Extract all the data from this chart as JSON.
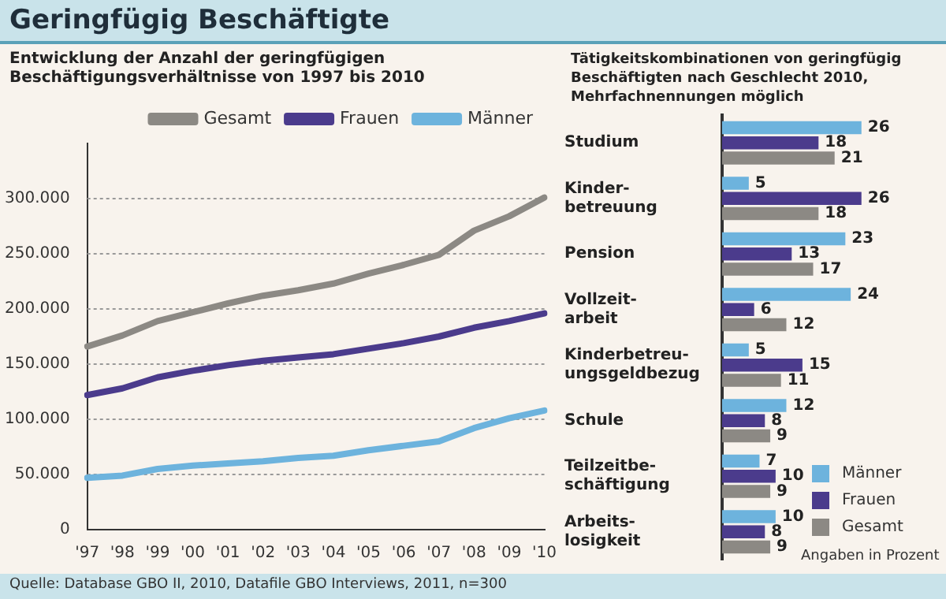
{
  "chart_data": [
    {
      "type": "line",
      "title": "Geringfügig Beschäftigte",
      "subtitle": "Entwicklung der Anzahl der geringfügigen Beschäftigungsverhältnisse von 1997 bis 2010",
      "categories": [
        "'97",
        "'98",
        "'99",
        "'00",
        "'01",
        "'02",
        "'03",
        "'04",
        "'05",
        "'06",
        "'07",
        "'08",
        "'09",
        "'10"
      ],
      "series": [
        {
          "name": "Gesamt",
          "color": "#8c8984",
          "values": [
            166000,
            176000,
            189000,
            197000,
            205000,
            212000,
            217000,
            223000,
            232000,
            240000,
            249000,
            271000,
            284000,
            301000
          ]
        },
        {
          "name": "Frauen",
          "color": "#4b3b8c",
          "values": [
            122000,
            128000,
            138000,
            144000,
            149000,
            153000,
            156000,
            159000,
            164000,
            169000,
            175000,
            183000,
            189000,
            196000
          ]
        },
        {
          "name": "Männer",
          "color": "#6db3dd",
          "values": [
            47000,
            49000,
            55000,
            58000,
            60000,
            62000,
            65000,
            67000,
            72000,
            76000,
            80000,
            92000,
            101000,
            108000
          ]
        }
      ],
      "ylim": [
        0,
        350000
      ],
      "yticks": [
        0,
        {
          "value": 50000,
          "label": "50.000"
        },
        {
          "value": 100000,
          "label": "100.000"
        },
        {
          "value": 150000,
          "label": "150.000"
        },
        {
          "value": 200000,
          "label": "200.000"
        },
        {
          "value": 250000,
          "label": "250.000"
        },
        {
          "value": 300000,
          "label": "300.000"
        }
      ],
      "grid": "y",
      "legend": "top",
      "marker": "none",
      "annotations": [
        "Quelle: Database GBO II, 2010, Datafile GBO Interviews, 2011, n=300"
      ]
    },
    {
      "type": "bar",
      "orientation": "horizontal",
      "title": "Tätigkeitskombinationen von geringfügig Beschäftigten nach Geschlecht 2010, Mehrfachnennungen möglich",
      "categories": [
        "Studium",
        "Kinder-\nbetreuung",
        "Pension",
        "Vollzeit-\narbeit",
        "Kinderbetreu-\nungsgeldbezug",
        "Schule",
        "Teilzeitbe-\nschäftigung",
        "Arbeits-\nlosigkeit"
      ],
      "series": [
        {
          "name": "Männer",
          "color": "#6db3dd",
          "values": [
            26,
            5,
            23,
            24,
            5,
            12,
            7,
            10
          ]
        },
        {
          "name": "Frauen",
          "color": "#4b3b8c",
          "values": [
            18,
            26,
            13,
            6,
            15,
            8,
            10,
            8
          ]
        },
        {
          "name": "Gesamt",
          "color": "#8c8984",
          "values": [
            21,
            18,
            17,
            12,
            11,
            9,
            9,
            9
          ]
        }
      ],
      "data_labels": true,
      "legend": "bottom right",
      "annotations": [
        "Angaben in Prozent"
      ]
    }
  ]
}
